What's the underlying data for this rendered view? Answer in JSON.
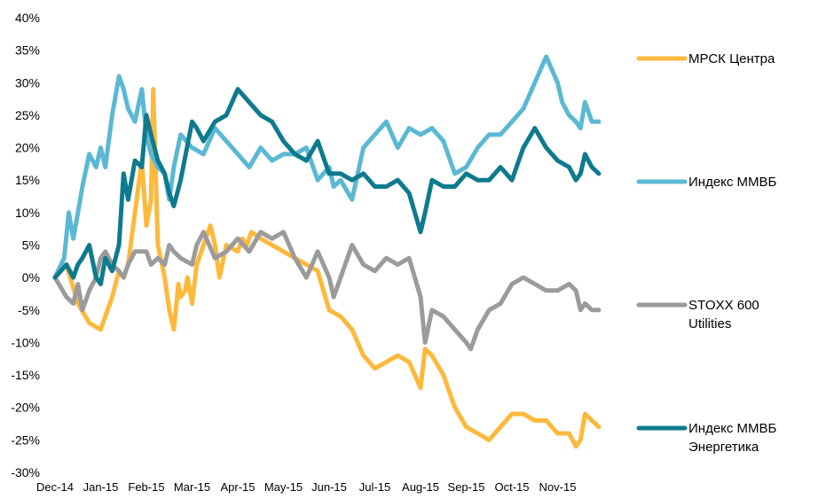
{
  "chart_data": {
    "type": "line",
    "ylim": [
      -30,
      40
    ],
    "yticks": [
      "40%",
      "35%",
      "30%",
      "25%",
      "20%",
      "15%",
      "10%",
      "5%",
      "0%",
      "-5%",
      "-10%",
      "-15%",
      "-20%",
      "-25%",
      "-30%"
    ],
    "ytick_values": [
      40,
      35,
      30,
      25,
      20,
      15,
      10,
      5,
      0,
      -5,
      -10,
      -15,
      -20,
      -25,
      -30
    ],
    "xticks": [
      "Dec-14",
      "Jan-15",
      "Feb-15",
      "Mar-15",
      "Apr-15",
      "May-15",
      "Jun-15",
      "Jul-15",
      "Aug-15",
      "Sep-15",
      "Oct-15",
      "Nov-15"
    ],
    "x_range": [
      0,
      12
    ],
    "legend_position": "right",
    "grid": false,
    "series": [
      {
        "name": "МРСК Центра",
        "color": "#FDB93C",
        "x": [
          0,
          0.25,
          0.5,
          0.75,
          1.0,
          1.25,
          1.4,
          1.5,
          1.6,
          1.75,
          1.9,
          2.0,
          2.1,
          2.15,
          2.25,
          2.4,
          2.5,
          2.6,
          2.7,
          2.75,
          2.85,
          2.9,
          3.0,
          3.1,
          3.25,
          3.4,
          3.5,
          3.6,
          3.75,
          4.0,
          4.1,
          4.2,
          4.3,
          4.5,
          4.75,
          5.0,
          5.25,
          5.5,
          5.75,
          6.0,
          6.25,
          6.5,
          6.75,
          7.0,
          7.25,
          7.5,
          7.75,
          8.0,
          8.1,
          8.25,
          8.5,
          8.75,
          9.0,
          9.25,
          9.5,
          9.75,
          10.0,
          10.25,
          10.5,
          10.75,
          11.0,
          11.25,
          11.4,
          11.5,
          11.6,
          11.75,
          11.9
        ],
        "values": [
          0,
          2,
          -4,
          -7,
          -8,
          -3,
          1,
          0,
          2,
          10,
          18,
          8,
          12,
          29,
          5,
          0,
          -5,
          -8,
          -1,
          -3,
          -2,
          0,
          -4,
          2,
          5,
          8,
          5,
          0,
          5,
          4,
          6,
          5,
          7,
          6,
          5,
          4,
          3,
          2,
          1,
          -5,
          -6,
          -8,
          -12,
          -14,
          -13,
          -12,
          -13,
          -17,
          -11,
          -12,
          -15,
          -20,
          -23,
          -24,
          -25,
          -23,
          -21,
          -21,
          -22,
          -22,
          -24,
          -24,
          -26,
          -25,
          -21,
          -22,
          -23
        ]
      },
      {
        "name": "Индекс ММВБ",
        "color": "#5BB8D4",
        "x": [
          0,
          0.2,
          0.3,
          0.4,
          0.5,
          0.6,
          0.75,
          0.9,
          1.0,
          1.1,
          1.25,
          1.4,
          1.5,
          1.6,
          1.75,
          1.9,
          2.0,
          2.1,
          2.25,
          2.4,
          2.5,
          2.6,
          2.75,
          3.0,
          3.25,
          3.5,
          3.75,
          4.0,
          4.25,
          4.5,
          4.75,
          5.0,
          5.25,
          5.5,
          5.75,
          6.0,
          6.1,
          6.25,
          6.5,
          6.75,
          7.0,
          7.25,
          7.5,
          7.75,
          8.0,
          8.25,
          8.5,
          8.75,
          9.0,
          9.25,
          9.5,
          9.75,
          10.0,
          10.25,
          10.5,
          10.75,
          11.0,
          11.1,
          11.25,
          11.4,
          11.5,
          11.6,
          11.75,
          11.9
        ],
        "values": [
          0,
          3,
          10,
          6,
          10,
          14,
          19,
          17,
          20,
          17,
          25,
          31,
          29,
          26,
          24,
          29,
          22,
          19,
          17,
          16,
          12,
          17,
          22,
          20,
          19,
          23,
          21,
          19,
          17,
          20,
          18,
          19,
          19,
          20,
          15,
          17,
          14,
          15,
          12,
          20,
          22,
          24,
          20,
          23,
          22,
          23,
          21,
          16,
          17,
          20,
          22,
          22,
          24,
          26,
          30,
          34,
          30,
          27,
          25,
          24,
          23,
          27,
          24,
          24
        ]
      },
      {
        "name": "STOXX 600 Utilities",
        "color": "#9B9B9B",
        "x": [
          0,
          0.25,
          0.4,
          0.5,
          0.6,
          0.75,
          0.9,
          1.0,
          1.1,
          1.25,
          1.4,
          1.5,
          1.6,
          1.75,
          1.9,
          2.0,
          2.1,
          2.25,
          2.4,
          2.5,
          2.6,
          2.75,
          3.0,
          3.1,
          3.25,
          3.5,
          3.75,
          4.0,
          4.25,
          4.5,
          4.75,
          5.0,
          5.25,
          5.5,
          5.75,
          6.0,
          6.1,
          6.25,
          6.5,
          6.75,
          7.0,
          7.25,
          7.5,
          7.75,
          8.0,
          8.1,
          8.25,
          8.5,
          8.75,
          9.0,
          9.1,
          9.25,
          9.5,
          9.75,
          10.0,
          10.25,
          10.5,
          10.75,
          11.0,
          11.25,
          11.4,
          11.5,
          11.6,
          11.75,
          11.9
        ],
        "values": [
          0,
          -3,
          -4,
          -1,
          -5,
          -2,
          0,
          3,
          4,
          2,
          1,
          0,
          2,
          4,
          4,
          4,
          2,
          3,
          2,
          5,
          4,
          3,
          2,
          5,
          7,
          3,
          4,
          6,
          4,
          7,
          6,
          7,
          3,
          0,
          4,
          0,
          -3,
          0,
          5,
          2,
          1,
          3,
          2,
          3,
          -3,
          -10,
          -5,
          -6,
          -8,
          -10,
          -11,
          -8,
          -5,
          -4,
          -1,
          0,
          -1,
          -2,
          -2,
          -1,
          -2,
          -5,
          -4,
          -5,
          -5
        ]
      },
      {
        "name": "Индекс ММВБ Энергетика",
        "color": "#0E7A8E",
        "x": [
          0,
          0.25,
          0.4,
          0.5,
          0.6,
          0.75,
          0.9,
          1.0,
          1.1,
          1.25,
          1.4,
          1.5,
          1.6,
          1.75,
          1.9,
          2.0,
          2.1,
          2.25,
          2.4,
          2.5,
          2.6,
          2.75,
          3.0,
          3.1,
          3.25,
          3.5,
          3.75,
          4.0,
          4.25,
          4.5,
          4.75,
          5.0,
          5.25,
          5.5,
          5.75,
          6.0,
          6.25,
          6.5,
          6.75,
          7.0,
          7.25,
          7.5,
          7.75,
          8.0,
          8.1,
          8.25,
          8.5,
          8.75,
          9.0,
          9.25,
          9.5,
          9.75,
          10.0,
          10.25,
          10.5,
          10.75,
          11.0,
          11.25,
          11.4,
          11.5,
          11.6,
          11.75,
          11.9
        ],
        "values": [
          0,
          2,
          0,
          2,
          3,
          5,
          0,
          -1,
          3,
          1,
          5,
          16,
          12,
          18,
          17,
          25,
          22,
          18,
          16,
          13,
          11,
          15,
          24,
          23,
          21,
          24,
          25,
          29,
          27,
          25,
          24,
          21,
          19,
          18,
          21,
          16,
          16,
          15,
          16,
          14,
          14,
          15,
          13,
          7,
          10,
          15,
          14,
          14,
          16,
          15,
          15,
          17,
          15,
          20,
          23,
          20,
          18,
          17,
          15,
          16,
          19,
          17,
          16
        ]
      }
    ]
  }
}
